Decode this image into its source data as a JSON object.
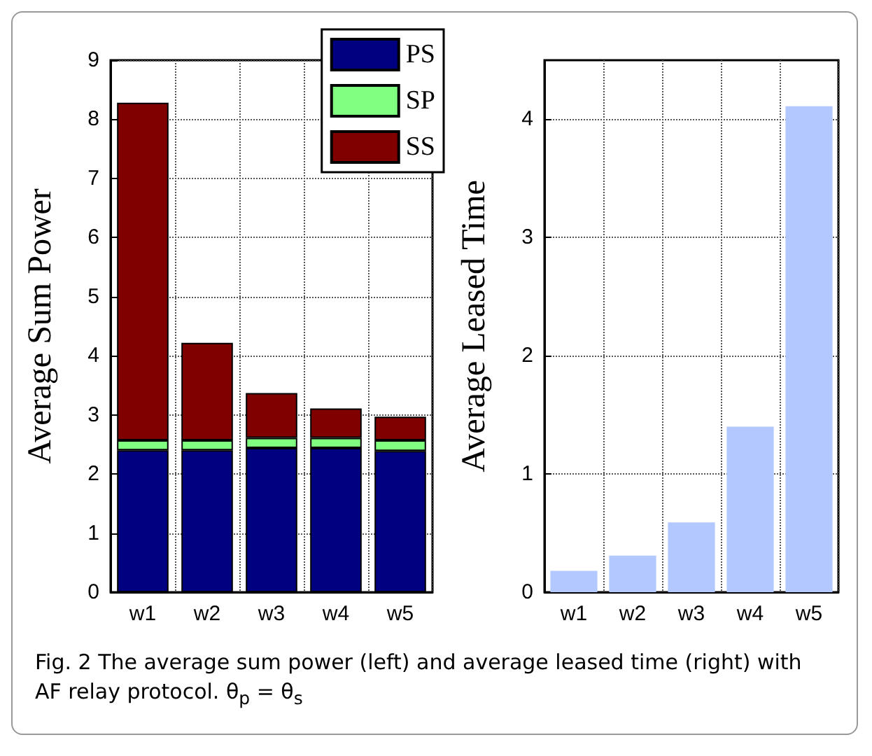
{
  "chart_data": [
    {
      "type": "bar",
      "stacked": true,
      "ylabel": "Average Sum Power",
      "categories": [
        "w1",
        "w2",
        "w3",
        "w4",
        "w5"
      ],
      "series": [
        {
          "name": "PS",
          "color": "#000080",
          "values": [
            2.4,
            2.4,
            2.44,
            2.44,
            2.39
          ]
        },
        {
          "name": "SP",
          "color": "#80ff80",
          "values": [
            0.17,
            0.17,
            0.17,
            0.17,
            0.18
          ]
        },
        {
          "name": "SS",
          "color": "#800000",
          "values": [
            5.71,
            1.65,
            0.76,
            0.5,
            0.4
          ]
        }
      ],
      "ylim": [
        0,
        9
      ],
      "yticks": [
        0,
        1,
        2,
        3,
        4,
        5,
        6,
        7,
        8,
        9
      ],
      "grid": true,
      "legend": "top right",
      "annotations": [
        "Fig. 2 The average sum power (left) and average leased time (right) with AF relay protocol. θ$_{p}$ = θ$_{s}$"
      ]
    },
    {
      "type": "bar",
      "ylabel": "Average Leased Time",
      "categories": [
        "w1",
        "w2",
        "w3",
        "w4",
        "w5"
      ],
      "values": [
        0.18,
        0.31,
        0.59,
        1.4,
        4.11
      ],
      "color": "#b3c8ff",
      "ylim": [
        0,
        4.5
      ],
      "yticks": [
        0,
        1,
        2,
        3,
        4
      ],
      "grid": true
    }
  ]
}
